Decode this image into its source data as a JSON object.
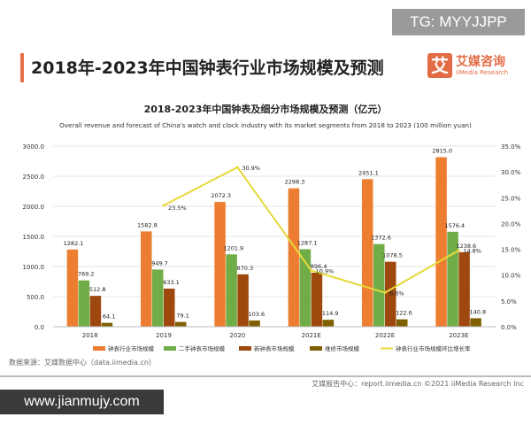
{
  "watermark_top": "TG: MYYJJPP",
  "watermark_bottom": "www.jianmujy.com",
  "header": {
    "title": "2018年-2023年中国钟表行业市场规模及预测",
    "logo_cn": "艾媒咨询",
    "logo_en": "iiMedia Research",
    "logo_mark": "艾"
  },
  "footer": {
    "source": "数据来源：艾媒数据中心（data.iimedia.cn）",
    "copyright": "艾媒报告中心：report.iimedia.cn  ©2021  iiMedia Research Inc"
  },
  "chart_data": {
    "type": "bar",
    "title": "2018-2023年中国钟表及细分市场规模及预测（亿元）",
    "subtitle": "Overall revenue and forecast of China's watch and clock industry with its market segments from 2018 to 2023 (100 million yuan)",
    "categories": [
      "2018",
      "2019",
      "2020",
      "2021E",
      "2022E",
      "2023E"
    ],
    "ylim": [
      0,
      3000
    ],
    "y_ticks": [
      "0.0",
      "500.0",
      "1000.0",
      "1500.0",
      "2000.0",
      "2500.0",
      "3000.0"
    ],
    "y2lim": [
      0,
      35
    ],
    "y2_ticks": [
      "0.0%",
      "5.0%",
      "10.0%",
      "15.0%",
      "20.0%",
      "25.0%",
      "30.0%",
      "35.0%"
    ],
    "grid": true,
    "legend_position": "bottom",
    "series": [
      {
        "name": "钟表行业市场规模",
        "type": "bar",
        "color": "#ed7d31",
        "values": [
          1282.1,
          1582.8,
          2072.3,
          2298.3,
          2451.1,
          2815.0
        ],
        "labels": [
          "1282.1",
          "1582.8",
          "2072.3",
          "2298.3",
          "2451.1",
          "2815.0"
        ]
      },
      {
        "name": "二手钟表市场规模",
        "type": "bar",
        "color": "#70ad47",
        "values": [
          769.2,
          949.7,
          1201.9,
          1287.1,
          1372.6,
          1576.4
        ],
        "labels": [
          "769.2",
          "949.7",
          "1201.9",
          "1287.1",
          "1372.6",
          "1576.4"
        ]
      },
      {
        "name": "新钟表市场规模",
        "type": "bar",
        "color": "#9e480e",
        "values": [
          512.8,
          633.1,
          870.3,
          896.4,
          1078.5,
          1238.6
        ],
        "labels": [
          "512.8",
          "633.1",
          "870.3",
          "896.4",
          "1078.5",
          "1238.6"
        ]
      },
      {
        "name": "维修市场规模",
        "type": "bar",
        "color": "#7f6000",
        "values": [
          64.1,
          79.1,
          103.6,
          114.9,
          122.6,
          140.8
        ],
        "labels": [
          "64.1",
          "79.1",
          "103.6",
          "114.9",
          "122.6",
          "140.8"
        ]
      },
      {
        "name": "钟表行业市场规模环比增长率",
        "type": "line",
        "axis": "right",
        "color": "#e6d93a",
        "values": [
          null,
          23.5,
          30.9,
          10.9,
          6.6,
          14.8
        ],
        "labels": [
          "",
          "23.5%",
          "30.9%",
          "10.9%",
          "6.6%",
          "14.8%"
        ]
      }
    ]
  }
}
